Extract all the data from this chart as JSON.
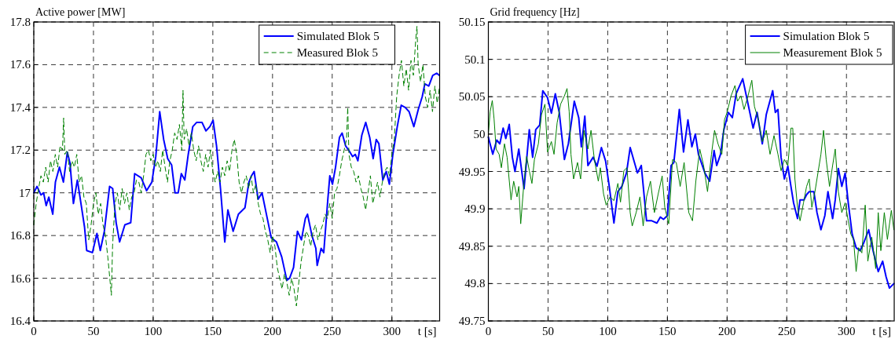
{
  "chart_data": [
    {
      "type": "line",
      "ylabel": "Active power [MW]",
      "xlabel": "t [s]",
      "xlim": [
        0,
        340
      ],
      "xticks": [
        0,
        50,
        100,
        150,
        200,
        250,
        300
      ],
      "ylim": [
        16.4,
        17.8
      ],
      "yticks": [
        16.4,
        16.6,
        16.8,
        17,
        17.2,
        17.4,
        17.6,
        17.8
      ],
      "grid": true,
      "legend": "top right",
      "series": [
        {
          "name": "Simulated Blok 5",
          "color": "#0000ff",
          "line_style": "solid",
          "x": [
            0,
            2.7,
            6,
            8.2,
            10.4,
            12.6,
            15.9,
            18.1,
            21.5,
            24.8,
            28.1,
            30.3,
            33.2,
            36.5,
            39.8,
            42.5,
            44.3,
            49.1,
            52.9,
            55.7,
            59.1,
            63.5,
            66.1,
            69,
            71.9,
            76.3,
            81.2,
            84.5,
            90,
            94.5,
            98.9,
            102.2,
            105.5,
            108.8,
            112.2,
            115.5,
            118.3,
            121,
            123.6,
            126.5,
            129.4,
            133.2,
            136.5,
            140.9,
            144.2,
            147.5,
            150.2,
            153.1,
            156.4,
            160,
            162.6,
            167,
            171.4,
            176.9,
            180.2,
            182.4,
            184.6,
            187.9,
            191.2,
            195.6,
            198.9,
            203.3,
            207.7,
            212,
            214.3,
            217.6,
            220.9,
            224.2,
            227.5,
            229.3,
            233,
            236.3,
            237.4,
            240.7,
            242.9,
            246.2,
            248,
            250.2,
            252.8,
            256.1,
            258.3,
            261.2,
            263.8,
            267.1,
            269.3,
            271.5,
            274.8,
            278.1,
            281.4,
            284.3,
            286.9,
            289.1,
            292.4,
            295.3,
            297.9,
            300.8,
            304.5,
            307.8,
            311.1,
            314.4,
            318.4,
            322.1,
            325.4,
            327.6,
            330.9,
            334.2,
            337.5,
            339.7
          ],
          "values": [
            17.0,
            17.03,
            16.99,
            17.0,
            16.94,
            16.98,
            16.9,
            17.05,
            17.12,
            17.05,
            17.19,
            17.14,
            16.95,
            17.06,
            16.94,
            16.84,
            16.73,
            16.72,
            16.81,
            16.73,
            16.82,
            17.03,
            17.02,
            16.86,
            16.77,
            16.85,
            16.86,
            17.09,
            17.07,
            17.01,
            17.05,
            17.17,
            17.38,
            17.25,
            17.16,
            17.13,
            17.0,
            17.0,
            17.09,
            17.06,
            17.18,
            17.31,
            17.33,
            17.33,
            17.29,
            17.31,
            17.34,
            17.22,
            17.02,
            16.77,
            16.92,
            16.82,
            16.9,
            16.93,
            17.05,
            17.08,
            17.1,
            16.97,
            17.0,
            16.88,
            16.79,
            16.77,
            16.7,
            16.59,
            16.6,
            16.65,
            16.82,
            16.78,
            16.88,
            16.9,
            16.8,
            16.74,
            16.66,
            16.74,
            16.72,
            16.96,
            17.08,
            17.04,
            17.12,
            17.26,
            17.28,
            17.22,
            17.2,
            17.17,
            17.18,
            17.15,
            17.27,
            17.33,
            17.26,
            17.16,
            17.25,
            17.23,
            17.06,
            17.1,
            17.04,
            17.18,
            17.31,
            17.41,
            17.4,
            17.38,
            17.31,
            17.39,
            17.45,
            17.51,
            17.5,
            17.55,
            17.56,
            17.55
          ]
        },
        {
          "name": "Measured Blok 5",
          "color": "#008000",
          "line_style": "dashed",
          "x": [
            0,
            2,
            4,
            6,
            8,
            10,
            12,
            14,
            16,
            18,
            20,
            22,
            24,
            25,
            26,
            28,
            30,
            32,
            34,
            36,
            38,
            40,
            42,
            44,
            46,
            48,
            50,
            52,
            54,
            56,
            58,
            60,
            62,
            64,
            65,
            66,
            68,
            70,
            72,
            74,
            76,
            78,
            80,
            82,
            84,
            86,
            88,
            90,
            92,
            94,
            96,
            98,
            100,
            102,
            104,
            106,
            108,
            110,
            112,
            114,
            116,
            118,
            120,
            122,
            124,
            125,
            126,
            128,
            130,
            132,
            134,
            136,
            138,
            140,
            142,
            144,
            146,
            148,
            150,
            152,
            154,
            156,
            158,
            160,
            162,
            164,
            166,
            168,
            170,
            172,
            174,
            176,
            178,
            180,
            182,
            184,
            186,
            188,
            190,
            192,
            194,
            196,
            198,
            200,
            202,
            204,
            206,
            208,
            210,
            212,
            214,
            216,
            218,
            220,
            222,
            224,
            226,
            228,
            230,
            232,
            234,
            236,
            238,
            240,
            242,
            244,
            246,
            248,
            250,
            252,
            254,
            256,
            258,
            260,
            262,
            263,
            264,
            266,
            268,
            270,
            272,
            274,
            276,
            278,
            280,
            282,
            284,
            286,
            288,
            290,
            292,
            294,
            296,
            298,
            300,
            302,
            304,
            306,
            308,
            310,
            312,
            314,
            316,
            318,
            320,
            321,
            322,
            324,
            326,
            328,
            330,
            332,
            334,
            336,
            338,
            340
          ],
          "values": [
            16.85,
            16.95,
            17.02,
            17.08,
            17.05,
            17.12,
            17.05,
            17.15,
            17.1,
            17.18,
            17.12,
            17.22,
            17.2,
            17.35,
            17.18,
            17.2,
            17.1,
            17.15,
            17.12,
            17.18,
            17.05,
            17.08,
            16.98,
            16.95,
            16.78,
            16.85,
            16.95,
            17.0,
            16.9,
            16.95,
            16.85,
            16.8,
            16.7,
            16.58,
            16.52,
            16.75,
            16.95,
            17.0,
            16.92,
            17.02,
            16.95,
            17.0,
            16.92,
            16.98,
            17.0,
            17.06,
            17.05,
            17.0,
            17.08,
            17.18,
            17.2,
            17.15,
            17.18,
            17.12,
            17.15,
            17.1,
            17.2,
            17.12,
            17.05,
            17.15,
            17.2,
            17.28,
            17.25,
            17.32,
            17.2,
            17.48,
            17.25,
            17.3,
            17.22,
            17.28,
            17.2,
            17.15,
            17.22,
            17.15,
            17.1,
            17.18,
            17.12,
            17.2,
            17.1,
            17.05,
            17.1,
            17.05,
            17.12,
            17.08,
            17.15,
            17.1,
            17.2,
            17.25,
            17.18,
            17.05,
            17.0,
            17.05,
            17.08,
            17.02,
            17.08,
            17.0,
            17.04,
            16.95,
            16.9,
            16.88,
            16.82,
            16.78,
            16.72,
            16.8,
            16.75,
            16.65,
            16.6,
            16.55,
            16.62,
            16.58,
            16.52,
            16.6,
            16.55,
            16.47,
            16.58,
            16.68,
            16.75,
            16.82,
            16.8,
            16.75,
            16.82,
            16.85,
            16.78,
            16.82,
            16.85,
            16.9,
            16.88,
            16.95,
            16.88,
            17.0,
            17.02,
            17.08,
            17.15,
            17.2,
            17.25,
            17.4,
            17.18,
            17.12,
            17.1,
            17.05,
            17.08,
            17.02,
            16.98,
            16.92,
            17.0,
            17.08,
            16.95,
            17.0,
            17.05,
            16.98,
            17.05,
            17.1,
            17.12,
            17.08,
            17.18,
            17.25,
            17.45,
            17.55,
            17.62,
            17.5,
            17.58,
            17.48,
            17.62,
            17.55,
            17.72,
            17.78,
            17.6,
            17.52,
            17.6,
            17.45,
            17.4,
            17.48,
            17.38,
            17.5,
            17.42,
            17.5
          ]
        }
      ]
    },
    {
      "type": "line",
      "ylabel": "Grid frequency [Hz]",
      "xlabel": "t [s]",
      "xlim": [
        0,
        340
      ],
      "xticks": [
        0,
        50,
        100,
        150,
        200,
        250,
        300
      ],
      "ylim": [
        49.75,
        50.15
      ],
      "yticks": [
        49.75,
        49.8,
        49.85,
        49.9,
        49.95,
        50,
        50.05,
        50.1,
        50.15
      ],
      "grid": true,
      "legend": "top right",
      "series": [
        {
          "name": "Simulation Blok 5",
          "color": "#0000ff",
          "line_style": "solid",
          "x": [
            0,
            3.7,
            7,
            9.6,
            12.4,
            14.6,
            17.5,
            20.1,
            22.3,
            25.5,
            29.9,
            34.3,
            37.1,
            39.7,
            43,
            45.6,
            49.5,
            52.8,
            56.1,
            59.4,
            63.7,
            67,
            72,
            75.7,
            77.9,
            80.8,
            83.4,
            87.8,
            91,
            94.7,
            98.2,
            101.3,
            105.2,
            108.5,
            111.8,
            115.7,
            118.8,
            124.9,
            128.1,
            132.5,
            136.9,
            141.2,
            144.1,
            146.7,
            150,
            153.1,
            155.4,
            160,
            163.5,
            167.2,
            170.5,
            173.4,
            176,
            181.4,
            185.4,
            189.1,
            191.3,
            194.5,
            197.2,
            201.1,
            204.4,
            207.6,
            213.1,
            216.4,
            221.8,
            225.1,
            229.5,
            232.8,
            238.2,
            240.4,
            242.6,
            245.2,
            248,
            250.9,
            253.5,
            255.7,
            259,
            261.1,
            264.4,
            266.6,
            268.8,
            272.7,
            275.3,
            278.6,
            281.9,
            284.5,
            288.4,
            290.6,
            293.2,
            296.1,
            298.9,
            301.5,
            304.8,
            308.1,
            311.4,
            314.6,
            318.6,
            322.3,
            326.6,
            330.3,
            333.2,
            336,
            339.7
          ],
          "values": [
            49.996,
            49.973,
            49.992,
            49.987,
            50.008,
            49.994,
            50.013,
            49.969,
            49.95,
            49.98,
            49.927,
            50.006,
            49.969,
            50.006,
            50.012,
            50.058,
            50.049,
            50.028,
            50.054,
            50.029,
            49.966,
            49.987,
            50.044,
            50.022,
            49.983,
            50.024,
            49.958,
            49.969,
            49.957,
            49.982,
            49.964,
            49.93,
            49.881,
            49.923,
            49.93,
            49.948,
            49.982,
            49.948,
            49.958,
            49.884,
            49.884,
            49.881,
            49.889,
            49.886,
            49.891,
            49.958,
            49.962,
            50.033,
            49.976,
            50.019,
            49.983,
            50.0,
            49.973,
            49.948,
            49.937,
            49.978,
            49.958,
            49.973,
            50.005,
            50.029,
            50.022,
            50.054,
            50.074,
            50.049,
            50.008,
            50.029,
            49.987,
            50.026,
            50.058,
            50.029,
            50.033,
            49.969,
            49.94,
            49.957,
            49.93,
            49.908,
            49.887,
            49.912,
            49.912,
            49.919,
            49.923,
            49.923,
            49.895,
            49.872,
            49.891,
            49.923,
            49.887,
            49.912,
            49.954,
            49.93,
            49.948,
            49.908,
            49.866,
            49.848,
            49.844,
            49.855,
            49.872,
            49.844,
            49.816,
            49.83,
            49.809,
            49.794,
            49.8
          ]
        },
        {
          "name": "Measurement Blok 5",
          "color": "#008000",
          "line_style": "solid",
          "x": [
            0,
            1.5,
            3.3,
            4.8,
            6.5,
            9,
            10.9,
            13.5,
            15.7,
            19,
            21.2,
            24,
            25.5,
            27.1,
            29.9,
            32.1,
            34.3,
            36.5,
            38.6,
            41.9,
            44.5,
            47.4,
            49.6,
            52.8,
            55,
            57.6,
            60.5,
            63.7,
            65.9,
            67.7,
            69.2,
            71.4,
            74.7,
            77.3,
            80.1,
            83.4,
            86,
            88.8,
            92.1,
            93.8,
            96.5,
            98.7,
            101.9,
            105.2,
            108.5,
            110.7,
            113.5,
            116.1,
            118.8,
            120.5,
            123.8,
            127,
            129.7,
            132.5,
            135.8,
            139.1,
            142.3,
            145.6,
            147.8,
            151.1,
            154.3,
            157.4,
            160.7,
            164,
            167.9,
            171,
            173.8,
            177.1,
            180.3,
            183.6,
            186.9,
            189.5,
            192.4,
            195.6,
            197.8,
            200,
            203.3,
            206.6,
            208.7,
            211.6,
            214.2,
            217.5,
            220.7,
            222.9,
            226.2,
            229.5,
            232.8,
            236,
            239.3,
            242.6,
            245.2,
            248,
            250.9,
            253.5,
            255,
            256.8,
            259,
            261.1,
            264,
            266.6,
            268.8,
            271,
            273.6,
            276.4,
            278.6,
            280.8,
            283,
            285.8,
            288.4,
            290.6,
            293.2,
            296.1,
            298.9,
            301.5,
            303.7,
            305.9,
            308.1,
            310.2,
            312.9,
            315.7,
            317.9,
            321.2,
            324.5,
            326.6,
            328.8,
            331.7,
            334.3,
            337.6,
            339.7
          ],
          "values": [
            50.0,
            50.03,
            50.045,
            50.02,
            49.98,
            49.973,
            49.955,
            49.987,
            49.969,
            49.912,
            49.937,
            49.916,
            49.93,
            49.88,
            49.937,
            49.97,
            49.951,
            49.934,
            49.966,
            49.987,
            50.026,
            50.04,
            49.976,
            49.99,
            49.973,
            50.015,
            50.04,
            50.051,
            50.061,
            50.03,
            49.973,
            49.94,
            49.962,
            49.94,
            50.005,
            49.98,
            50.005,
            49.966,
            49.937,
            49.955,
            49.92,
            49.905,
            49.916,
            49.911,
            49.934,
            49.909,
            49.951,
            49.955,
            49.895,
            49.877,
            49.895,
            49.916,
            49.877,
            49.916,
            49.937,
            49.895,
            49.92,
            49.944,
            49.902,
            49.88,
            49.966,
            49.962,
            49.93,
            49.962,
            49.895,
            49.884,
            49.937,
            49.98,
            49.958,
            49.923,
            49.973,
            50.005,
            49.987,
            49.973,
            50.019,
            50.029,
            50.051,
            50.065,
            50.044,
            50.051,
            50.033,
            50.051,
            50.072,
            50.037,
            50.019,
            49.99,
            50.005,
            49.973,
            49.998,
            49.973,
            49.951,
            49.966,
            49.958,
            50.008,
            50.008,
            49.94,
            49.902,
            49.884,
            49.908,
            49.93,
            49.94,
            49.902,
            49.923,
            49.951,
            49.973,
            50.005,
            49.966,
            49.93,
            49.958,
            49.98,
            49.923,
            49.895,
            49.908,
            49.884,
            49.866,
            49.859,
            49.816,
            49.848,
            49.841,
            49.905,
            49.83,
            49.862,
            49.82,
            49.895,
            49.844,
            49.895,
            49.859,
            49.898,
            49.872
          ]
        }
      ]
    }
  ]
}
